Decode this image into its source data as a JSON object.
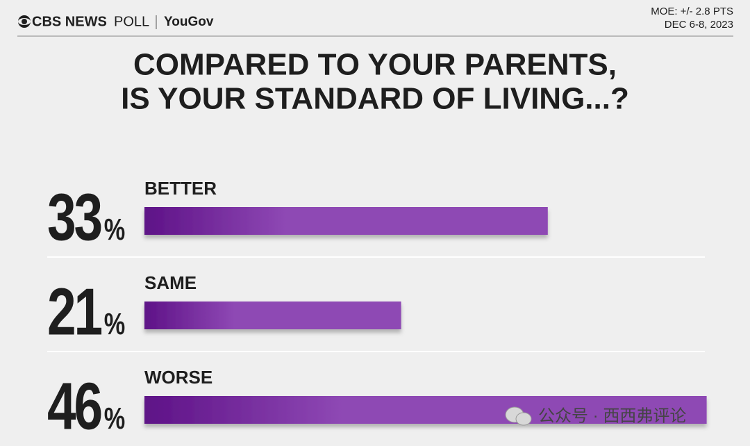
{
  "chart_data": {
    "type": "bar",
    "brand": {
      "cbs": "CBS NEWS",
      "poll": "POLL",
      "partner": "YouGov"
    },
    "moe": "MOE: +/- 2.8 PTS",
    "dates": "DEC 6-8, 2023",
    "title": [
      "COMPARED TO YOUR PARENTS,",
      "IS YOUR STANDARD OF LIVING...?"
    ],
    "categories": [
      "BETTER",
      "SAME",
      "WORSE"
    ],
    "values": [
      33,
      21,
      46
    ],
    "value_labels": [
      "33%",
      "21%",
      "46%"
    ],
    "colors": [
      "#5e1287",
      "#8e48b4"
    ],
    "watermark": "公众号 · 西西弗评论"
  }
}
